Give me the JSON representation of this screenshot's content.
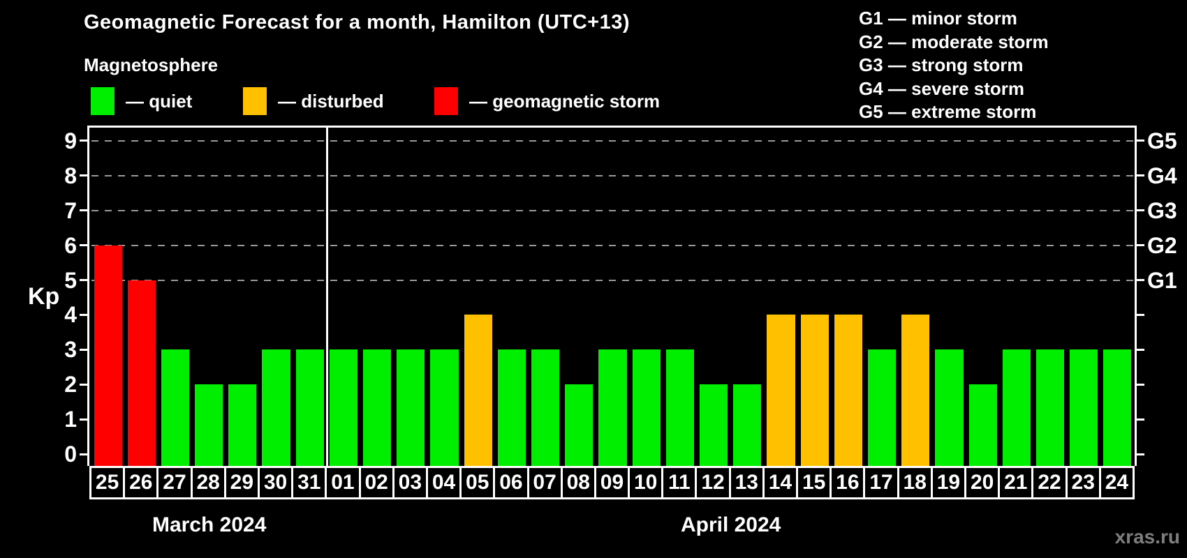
{
  "header": {
    "title": "Geomagnetic Forecast for a month, Hamilton (UTC+13)",
    "subtitle": "Magnetosphere"
  },
  "legend": {
    "items": [
      {
        "key": "quiet",
        "label": "— quiet",
        "color": "#00ee00"
      },
      {
        "key": "disturbed",
        "label": "— disturbed",
        "color": "#ffc000"
      },
      {
        "key": "storm",
        "label": "— geomagnetic storm",
        "color": "#ff0000"
      }
    ]
  },
  "g_scale": {
    "items": [
      "G1 — minor storm",
      "G2 — moderate storm",
      "G3 — strong storm",
      "G4 — severe storm",
      "G5 — extreme storm"
    ]
  },
  "chart_data": {
    "type": "bar",
    "title": "Geomagnetic Forecast for a month, Hamilton (UTC+13)",
    "ylabel": "Kp",
    "ylim": [
      0,
      9
    ],
    "yticks": [
      0,
      1,
      2,
      3,
      4,
      5,
      6,
      7,
      8,
      9
    ],
    "gridlines": [
      5,
      6,
      7,
      8,
      9
    ],
    "grid_on": true,
    "legend_position": "top-left",
    "right_axis_labels": [
      {
        "label": "G1",
        "value": 5
      },
      {
        "label": "G2",
        "value": 6
      },
      {
        "label": "G3",
        "value": 7
      },
      {
        "label": "G4",
        "value": 8
      },
      {
        "label": "G5",
        "value": 9
      }
    ],
    "categories": [
      "25",
      "26",
      "27",
      "28",
      "29",
      "30",
      "31",
      "01",
      "02",
      "03",
      "04",
      "05",
      "06",
      "07",
      "08",
      "09",
      "10",
      "11",
      "12",
      "13",
      "14",
      "15",
      "16",
      "17",
      "18",
      "19",
      "20",
      "21",
      "22",
      "23",
      "24"
    ],
    "values": [
      6,
      5,
      3,
      2,
      2,
      3,
      3,
      3,
      3,
      3,
      3,
      4,
      3,
      3,
      2,
      3,
      3,
      3,
      2,
      2,
      4,
      4,
      4,
      3,
      4,
      3,
      2,
      3,
      3,
      3,
      3
    ],
    "month_groups": [
      {
        "label": "March 2024",
        "start": 0,
        "end": 6
      },
      {
        "label": "April 2024",
        "start": 7,
        "end": 30
      }
    ],
    "color_rules": {
      "quiet_max": 3,
      "quiet_color": "#00ee00",
      "disturbed_max": 4,
      "disturbed_color": "#ffc000",
      "storm_color": "#ff0000"
    }
  },
  "watermark": "xras.ru"
}
